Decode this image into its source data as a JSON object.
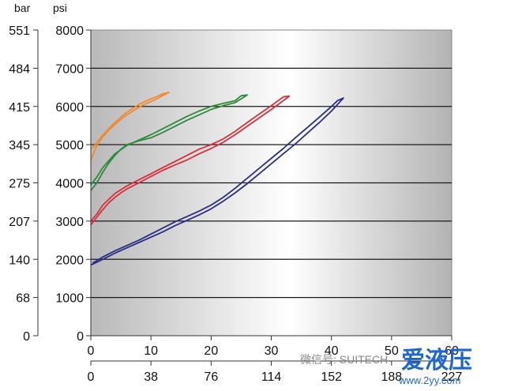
{
  "chart_data": {
    "type": "line",
    "title": "",
    "y_units": {
      "left": "bar",
      "right": "psi"
    },
    "y_ticks_bar": [
      "551",
      "484",
      "415",
      "345",
      "275",
      "207",
      "140",
      "68",
      "0"
    ],
    "y_ticks_psi": [
      "8000",
      "7000",
      "6000",
      "5000",
      "4000",
      "3000",
      "2000",
      "1000",
      "0"
    ],
    "ylim_psi": [
      0,
      8000
    ],
    "x_ticks_primary": [
      "0",
      "10",
      "20",
      "30",
      "40",
      "50",
      "60"
    ],
    "x_ticks_secondary": [
      "0",
      "38",
      "76",
      "114",
      "152",
      "188",
      "227"
    ],
    "xlim": [
      0,
      60
    ],
    "grid": "horizontal",
    "background": "gray-gradient",
    "series": [
      {
        "color": "#f08a30",
        "up": [
          [
            0,
            4600
          ],
          [
            1,
            4980
          ],
          [
            2,
            5200
          ],
          [
            3,
            5380
          ],
          [
            4,
            5530
          ],
          [
            5,
            5660
          ],
          [
            6,
            5780
          ],
          [
            7,
            5880
          ],
          [
            8,
            5980
          ],
          [
            9,
            6060
          ],
          [
            10,
            6130
          ],
          [
            11,
            6200
          ],
          [
            12,
            6290
          ],
          [
            13,
            6370
          ]
        ],
        "down": [
          [
            13,
            6370
          ],
          [
            12,
            6330
          ],
          [
            11,
            6260
          ],
          [
            10,
            6200
          ],
          [
            9,
            6130
          ],
          [
            8,
            6050
          ],
          [
            7,
            5950
          ],
          [
            6,
            5850
          ],
          [
            5,
            5720
          ],
          [
            4,
            5580
          ],
          [
            3,
            5420
          ],
          [
            2,
            5250
          ],
          [
            1,
            5060
          ],
          [
            0.2,
            4900
          ]
        ]
      },
      {
        "color": "#2e8b3a",
        "up": [
          [
            0,
            3800
          ],
          [
            1,
            4000
          ],
          [
            2,
            4280
          ],
          [
            3,
            4520
          ],
          [
            4,
            4720
          ],
          [
            5,
            4880
          ],
          [
            6,
            5000
          ],
          [
            8,
            5100
          ],
          [
            10,
            5180
          ],
          [
            12,
            5320
          ],
          [
            14,
            5480
          ],
          [
            16,
            5640
          ],
          [
            18,
            5780
          ],
          [
            20,
            5920
          ],
          [
            22,
            6020
          ],
          [
            24,
            6100
          ],
          [
            25,
            6200
          ],
          [
            26,
            6300
          ]
        ],
        "down": [
          [
            26,
            6300
          ],
          [
            25,
            6280
          ],
          [
            24,
            6150
          ],
          [
            22,
            6080
          ],
          [
            20,
            6000
          ],
          [
            18,
            5880
          ],
          [
            16,
            5740
          ],
          [
            14,
            5580
          ],
          [
            12,
            5420
          ],
          [
            10,
            5260
          ],
          [
            8,
            5120
          ],
          [
            6,
            4980
          ],
          [
            4,
            4760
          ],
          [
            2,
            4400
          ],
          [
            1,
            4150
          ],
          [
            0,
            3950
          ]
        ]
      },
      {
        "color": "#d8303a",
        "up": [
          [
            0,
            2900
          ],
          [
            1,
            3100
          ],
          [
            2,
            3300
          ],
          [
            3,
            3480
          ],
          [
            4,
            3620
          ],
          [
            5,
            3740
          ],
          [
            6,
            3840
          ],
          [
            8,
            4000
          ],
          [
            10,
            4170
          ],
          [
            12,
            4330
          ],
          [
            14,
            4470
          ],
          [
            16,
            4600
          ],
          [
            18,
            4760
          ],
          [
            20,
            4900
          ],
          [
            22,
            5060
          ],
          [
            24,
            5260
          ],
          [
            26,
            5480
          ],
          [
            28,
            5700
          ],
          [
            30,
            5920
          ],
          [
            32,
            6150
          ],
          [
            33,
            6270
          ]
        ],
        "down": [
          [
            33,
            6270
          ],
          [
            32,
            6250
          ],
          [
            30,
            6020
          ],
          [
            28,
            5800
          ],
          [
            26,
            5580
          ],
          [
            24,
            5350
          ],
          [
            22,
            5150
          ],
          [
            20,
            5000
          ],
          [
            18,
            4880
          ],
          [
            16,
            4720
          ],
          [
            14,
            4560
          ],
          [
            12,
            4400
          ],
          [
            10,
            4240
          ],
          [
            8,
            4080
          ],
          [
            6,
            3920
          ],
          [
            4,
            3720
          ],
          [
            2,
            3420
          ],
          [
            1,
            3180
          ],
          [
            0,
            3000
          ]
        ]
      },
      {
        "color": "#2a2f85",
        "up": [
          [
            0,
            1850
          ],
          [
            2,
            2000
          ],
          [
            4,
            2160
          ],
          [
            6,
            2300
          ],
          [
            8,
            2440
          ],
          [
            10,
            2580
          ],
          [
            12,
            2720
          ],
          [
            14,
            2880
          ],
          [
            16,
            3020
          ],
          [
            18,
            3160
          ],
          [
            20,
            3320
          ],
          [
            22,
            3520
          ],
          [
            24,
            3740
          ],
          [
            26,
            3980
          ],
          [
            28,
            4240
          ],
          [
            30,
            4500
          ],
          [
            32,
            4760
          ],
          [
            34,
            5020
          ],
          [
            36,
            5300
          ],
          [
            38,
            5580
          ],
          [
            40,
            5880
          ],
          [
            41,
            6050
          ],
          [
            42,
            6220
          ]
        ],
        "down": [
          [
            42,
            6220
          ],
          [
            41,
            6150
          ],
          [
            40,
            6000
          ],
          [
            38,
            5720
          ],
          [
            36,
            5450
          ],
          [
            34,
            5180
          ],
          [
            32,
            4900
          ],
          [
            30,
            4640
          ],
          [
            28,
            4380
          ],
          [
            26,
            4120
          ],
          [
            24,
            3860
          ],
          [
            22,
            3620
          ],
          [
            20,
            3420
          ],
          [
            18,
            3260
          ],
          [
            16,
            3120
          ],
          [
            14,
            2980
          ],
          [
            12,
            2820
          ],
          [
            10,
            2660
          ],
          [
            8,
            2500
          ],
          [
            6,
            2360
          ],
          [
            4,
            2220
          ],
          [
            2,
            2060
          ],
          [
            0.3,
            1900
          ]
        ]
      }
    ]
  },
  "watermark": {
    "wechat_text": "微信号: SUITECH",
    "logo_text": "爱液压",
    "url_text": "www.2yy.com"
  }
}
